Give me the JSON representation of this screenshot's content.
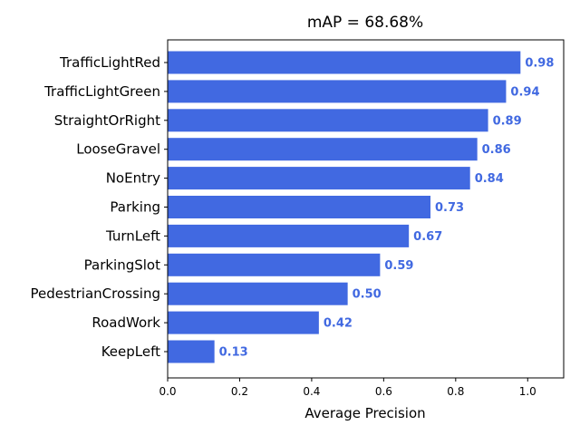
{
  "chart_data": {
    "type": "bar",
    "orientation": "horizontal",
    "title": "mAP = 68.68%",
    "xlabel": "Average Precision",
    "ylabel": "",
    "xlim": [
      0,
      1.1
    ],
    "xticks": [
      0.0,
      0.2,
      0.4,
      0.6,
      0.8,
      1.0
    ],
    "xtick_labels": [
      "0.0",
      "0.2",
      "0.4",
      "0.6",
      "0.8",
      "1.0"
    ],
    "grid": false,
    "bar_color": "#4169e1",
    "label_color": "#4169e1",
    "categories": [
      "TrafficLightRed",
      "TrafficLightGreen",
      "StraightOrRight",
      "LooseGravel",
      "NoEntry",
      "Parking",
      "TurnLeft",
      "ParkingSlot",
      "PedestrianCrossing",
      "RoadWork",
      "KeepLeft"
    ],
    "values": [
      0.98,
      0.94,
      0.89,
      0.86,
      0.84,
      0.73,
      0.67,
      0.59,
      0.5,
      0.42,
      0.13
    ],
    "value_labels": [
      "0.98",
      "0.94",
      "0.89",
      "0.86",
      "0.84",
      "0.73",
      "0.67",
      "0.59",
      "0.50",
      "0.42",
      "0.13"
    ]
  }
}
